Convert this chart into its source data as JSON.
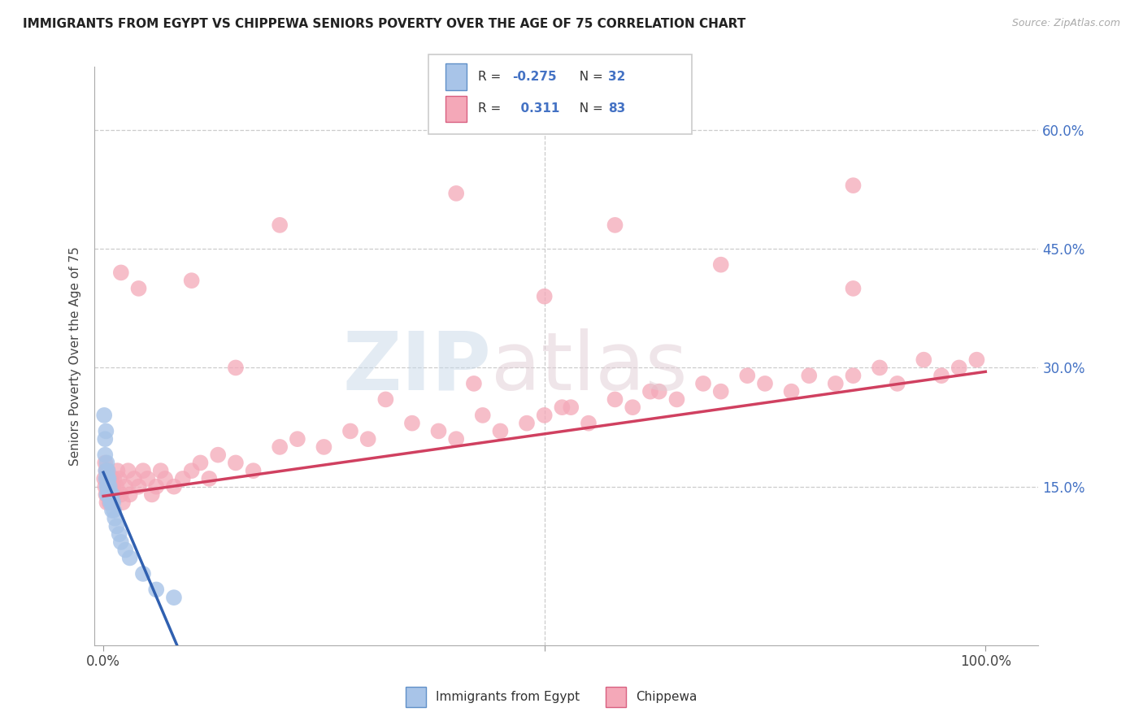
{
  "title": "IMMIGRANTS FROM EGYPT VS CHIPPEWA SENIORS POVERTY OVER THE AGE OF 75 CORRELATION CHART",
  "source": "Source: ZipAtlas.com",
  "ylabel": "Seniors Poverty Over the Age of 75",
  "legend_label1": "Immigrants from Egypt",
  "legend_label2": "Chippewa",
  "color_blue_fill": "#a8c4e8",
  "color_blue_edge": "#6090c8",
  "color_pink_fill": "#f4a8b8",
  "color_pink_edge": "#d86080",
  "color_line_blue": "#3060b0",
  "color_line_pink": "#d04060",
  "color_text_blue": "#4472c4",
  "color_text_pink": "#e05060",
  "color_grid": "#cccccc",
  "background": "#ffffff",
  "blue_x": [
    0.001,
    0.002,
    0.002,
    0.003,
    0.003,
    0.003,
    0.004,
    0.004,
    0.004,
    0.005,
    0.005,
    0.005,
    0.006,
    0.006,
    0.007,
    0.007,
    0.008,
    0.008,
    0.009,
    0.01,
    0.01,
    0.011,
    0.012,
    0.013,
    0.015,
    0.018,
    0.02,
    0.025,
    0.03,
    0.045,
    0.06,
    0.08
  ],
  "blue_y": [
    0.24,
    0.21,
    0.19,
    0.22,
    0.17,
    0.16,
    0.18,
    0.15,
    0.14,
    0.17,
    0.16,
    0.15,
    0.16,
    0.14,
    0.15,
    0.14,
    0.14,
    0.13,
    0.13,
    0.14,
    0.12,
    0.13,
    0.12,
    0.11,
    0.1,
    0.09,
    0.08,
    0.07,
    0.06,
    0.04,
    0.02,
    0.01
  ],
  "pink_x": [
    0.001,
    0.002,
    0.002,
    0.003,
    0.003,
    0.004,
    0.004,
    0.005,
    0.005,
    0.006,
    0.006,
    0.007,
    0.007,
    0.008,
    0.008,
    0.009,
    0.01,
    0.01,
    0.011,
    0.012,
    0.013,
    0.015,
    0.016,
    0.018,
    0.02,
    0.022,
    0.025,
    0.028,
    0.03,
    0.035,
    0.04,
    0.045,
    0.05,
    0.055,
    0.06,
    0.065,
    0.07,
    0.08,
    0.09,
    0.1,
    0.11,
    0.12,
    0.13,
    0.15,
    0.17,
    0.2,
    0.22,
    0.25,
    0.28,
    0.3,
    0.35,
    0.38,
    0.4,
    0.43,
    0.45,
    0.48,
    0.5,
    0.53,
    0.55,
    0.58,
    0.6,
    0.63,
    0.65,
    0.68,
    0.7,
    0.73,
    0.75,
    0.78,
    0.8,
    0.83,
    0.85,
    0.88,
    0.9,
    0.93,
    0.95,
    0.97,
    0.99,
    0.15,
    0.32,
    0.42,
    0.52,
    0.62
  ],
  "pink_y": [
    0.16,
    0.18,
    0.15,
    0.17,
    0.14,
    0.16,
    0.13,
    0.15,
    0.17,
    0.14,
    0.16,
    0.15,
    0.13,
    0.14,
    0.16,
    0.15,
    0.14,
    0.13,
    0.15,
    0.16,
    0.14,
    0.15,
    0.17,
    0.16,
    0.14,
    0.13,
    0.15,
    0.17,
    0.14,
    0.16,
    0.15,
    0.17,
    0.16,
    0.14,
    0.15,
    0.17,
    0.16,
    0.15,
    0.16,
    0.17,
    0.18,
    0.16,
    0.19,
    0.18,
    0.17,
    0.2,
    0.21,
    0.2,
    0.22,
    0.21,
    0.23,
    0.22,
    0.21,
    0.24,
    0.22,
    0.23,
    0.24,
    0.25,
    0.23,
    0.26,
    0.25,
    0.27,
    0.26,
    0.28,
    0.27,
    0.29,
    0.28,
    0.27,
    0.29,
    0.28,
    0.29,
    0.3,
    0.28,
    0.31,
    0.29,
    0.3,
    0.31,
    0.3,
    0.26,
    0.28,
    0.25,
    0.27
  ],
  "pink_outliers_x": [
    0.04,
    0.2,
    0.4,
    0.58,
    0.85,
    0.02,
    0.1,
    0.5,
    0.7,
    0.85
  ],
  "pink_outliers_y": [
    0.4,
    0.48,
    0.52,
    0.48,
    0.53,
    0.42,
    0.41,
    0.39,
    0.43,
    0.4
  ],
  "blue_line_x0": 0.0,
  "blue_line_x1": 0.2,
  "pink_line_x0": 0.0,
  "pink_line_x1": 1.0,
  "pink_line_y0": 0.138,
  "pink_line_y1": 0.295,
  "xlim_min": -0.01,
  "xlim_max": 1.06,
  "ylim_min": -0.05,
  "ylim_max": 0.68
}
